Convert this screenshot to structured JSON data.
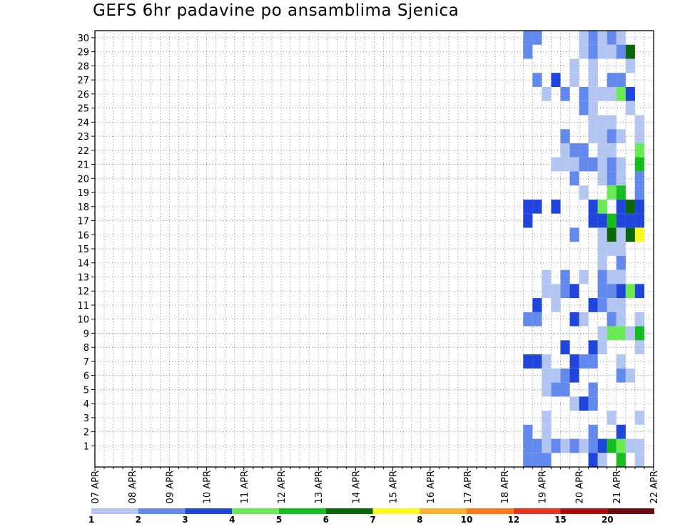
{
  "chart_data": {
    "type": "heatmap",
    "title": "GEFS 6hr padavine po ansamblima Sjenica",
    "xlabel": "",
    "ylabel": "",
    "x_tick_labels": [
      "07 APR",
      "08 APR",
      "09 APR",
      "10 APR",
      "11 APR",
      "12 APR",
      "13 APR",
      "14 APR",
      "15 APR",
      "16 APR",
      "17 APR",
      "18 APR",
      "19 APR",
      "20 APR",
      "21 APR",
      "22 APR"
    ],
    "x_ticks_step_per_label": 4,
    "x_steps_6h": 60,
    "y_tick_labels": [
      "1",
      "2",
      "3",
      "4",
      "5",
      "6",
      "7",
      "8",
      "9",
      "10",
      "11",
      "12",
      "13",
      "14",
      "15",
      "16",
      "17",
      "18",
      "19",
      "20",
      "21",
      "22",
      "23",
      "24",
      "25",
      "26",
      "27",
      "28",
      "29",
      "30"
    ],
    "members": 31,
    "legend_labels": [
      "1",
      "2",
      "3",
      "4",
      "5",
      "6",
      "7",
      "8",
      "10",
      "12",
      "15",
      "20"
    ],
    "levels": [
      1,
      2,
      3,
      4,
      5,
      6,
      7,
      8,
      10,
      12,
      15,
      20
    ],
    "colors": [
      "#b3c6f2",
      "#6389ee",
      "#1f45dc",
      "#6aeb55",
      "#16bd1f",
      "#086708",
      "#fefa1f",
      "#fbb032",
      "#f9781a",
      "#e5331f",
      "#ae0c0c",
      "#6e0b0b"
    ],
    "cells": [
      [
        14,
        30,
        2
      ],
      [
        14,
        29,
        2
      ],
      [
        14,
        18,
        3
      ],
      [
        14,
        17,
        3
      ],
      [
        14,
        10,
        2
      ],
      [
        14,
        7,
        3
      ],
      [
        14,
        2,
        2
      ],
      [
        14,
        1,
        2
      ],
      [
        14,
        0,
        2
      ],
      [
        13,
        30,
        2
      ],
      [
        13,
        27,
        2
      ],
      [
        13,
        18,
        3
      ],
      [
        13,
        11,
        3
      ],
      [
        13,
        10,
        2
      ],
      [
        13,
        7,
        3
      ],
      [
        13,
        1,
        2
      ],
      [
        13,
        0,
        2
      ],
      [
        12,
        26,
        1
      ],
      [
        12,
        13,
        1
      ],
      [
        12,
        12,
        1
      ],
      [
        12,
        7,
        1
      ],
      [
        12,
        6,
        1
      ],
      [
        12,
        5,
        1
      ],
      [
        12,
        3,
        1
      ],
      [
        12,
        2,
        1
      ],
      [
        12,
        1,
        1
      ],
      [
        12,
        0,
        2
      ],
      [
        11,
        27,
        3
      ],
      [
        11,
        21,
        1
      ],
      [
        11,
        18,
        3
      ],
      [
        11,
        12,
        1
      ],
      [
        11,
        11,
        1
      ],
      [
        11,
        6,
        1
      ],
      [
        11,
        5,
        2
      ],
      [
        11,
        1,
        2
      ],
      [
        10,
        26,
        2
      ],
      [
        10,
        23,
        2
      ],
      [
        10,
        22,
        1
      ],
      [
        10,
        21,
        1
      ],
      [
        10,
        13,
        2
      ],
      [
        10,
        12,
        2
      ],
      [
        10,
        8,
        3
      ],
      [
        10,
        6,
        2
      ],
      [
        10,
        5,
        2
      ],
      [
        10,
        1,
        1
      ],
      [
        9,
        28,
        1
      ],
      [
        9,
        27,
        1
      ],
      [
        9,
        22,
        2
      ],
      [
        9,
        21,
        1
      ],
      [
        9,
        20,
        2
      ],
      [
        9,
        16,
        2
      ],
      [
        9,
        12,
        3
      ],
      [
        9,
        10,
        3
      ],
      [
        9,
        7,
        3
      ],
      [
        9,
        6,
        3
      ],
      [
        9,
        4,
        1
      ],
      [
        9,
        1,
        2
      ],
      [
        8,
        30,
        1
      ],
      [
        8,
        29,
        1
      ],
      [
        8,
        26,
        2
      ],
      [
        8,
        25,
        2
      ],
      [
        8,
        22,
        2
      ],
      [
        8,
        21,
        2
      ],
      [
        8,
        19,
        1
      ],
      [
        8,
        13,
        1
      ],
      [
        8,
        10,
        1
      ],
      [
        8,
        7,
        2
      ],
      [
        8,
        4,
        3
      ],
      [
        8,
        1,
        1
      ],
      [
        7,
        30,
        2
      ],
      [
        7,
        29,
        2
      ],
      [
        7,
        28,
        1
      ],
      [
        7,
        27,
        1
      ],
      [
        7,
        26,
        1
      ],
      [
        7,
        25,
        1
      ],
      [
        7,
        24,
        1
      ],
      [
        7,
        23,
        1
      ],
      [
        7,
        21,
        2
      ],
      [
        7,
        18,
        3
      ],
      [
        7,
        17,
        3
      ],
      [
        7,
        11,
        3
      ],
      [
        7,
        8,
        3
      ],
      [
        7,
        7,
        2
      ],
      [
        7,
        5,
        2
      ],
      [
        7,
        4,
        2
      ],
      [
        7,
        2,
        2
      ],
      [
        7,
        1,
        2
      ],
      [
        7,
        0,
        3
      ],
      [
        6,
        30,
        1
      ],
      [
        6,
        29,
        1
      ],
      [
        6,
        26,
        1
      ],
      [
        6,
        24,
        1
      ],
      [
        6,
        23,
        1
      ],
      [
        6,
        22,
        1
      ],
      [
        6,
        21,
        1
      ],
      [
        6,
        20,
        1
      ],
      [
        6,
        18,
        4
      ],
      [
        6,
        17,
        3
      ],
      [
        6,
        16,
        1
      ],
      [
        6,
        15,
        1
      ],
      [
        6,
        14,
        1
      ],
      [
        6,
        13,
        2
      ],
      [
        6,
        12,
        2
      ],
      [
        6,
        11,
        2
      ],
      [
        6,
        9,
        1
      ],
      [
        6,
        8,
        1
      ],
      [
        6,
        1,
        3
      ],
      [
        6,
        0,
        1
      ],
      [
        5,
        30,
        2
      ],
      [
        5,
        29,
        1
      ],
      [
        5,
        27,
        2
      ],
      [
        5,
        26,
        1
      ],
      [
        5,
        24,
        1
      ],
      [
        5,
        23,
        2
      ],
      [
        5,
        22,
        1
      ],
      [
        5,
        21,
        2
      ],
      [
        5,
        20,
        2
      ],
      [
        5,
        19,
        4
      ],
      [
        5,
        17,
        5
      ],
      [
        5,
        16,
        6
      ],
      [
        5,
        15,
        1
      ],
      [
        5,
        13,
        1
      ],
      [
        5,
        12,
        2
      ],
      [
        5,
        11,
        1
      ],
      [
        5,
        10,
        2
      ],
      [
        5,
        9,
        4
      ],
      [
        5,
        3,
        1
      ],
      [
        5,
        1,
        5
      ],
      [
        4,
        30,
        1
      ],
      [
        4,
        29,
        2
      ],
      [
        4,
        27,
        2
      ],
      [
        4,
        26,
        4
      ],
      [
        4,
        23,
        1
      ],
      [
        4,
        21,
        1
      ],
      [
        4,
        20,
        1
      ],
      [
        4,
        19,
        5
      ],
      [
        4,
        18,
        3
      ],
      [
        4,
        17,
        3
      ],
      [
        4,
        16,
        1
      ],
      [
        4,
        15,
        1
      ],
      [
        4,
        14,
        2
      ],
      [
        4,
        13,
        1
      ],
      [
        4,
        12,
        3
      ],
      [
        4,
        11,
        1
      ],
      [
        4,
        10,
        1
      ],
      [
        4,
        9,
        4
      ],
      [
        4,
        7,
        1
      ],
      [
        4,
        6,
        2
      ],
      [
        4,
        2,
        3
      ],
      [
        4,
        1,
        4
      ],
      [
        4,
        0,
        5
      ],
      [
        3,
        29,
        6
      ],
      [
        3,
        28,
        1
      ],
      [
        3,
        26,
        3
      ],
      [
        3,
        25,
        1
      ],
      [
        3,
        18,
        6
      ],
      [
        3,
        17,
        3
      ],
      [
        3,
        16,
        6
      ],
      [
        3,
        12,
        4
      ],
      [
        3,
        9,
        1
      ],
      [
        3,
        6,
        1
      ],
      [
        3,
        1,
        1
      ],
      [
        2,
        24,
        1
      ],
      [
        2,
        23,
        1
      ],
      [
        2,
        22,
        4
      ],
      [
        2,
        21,
        5
      ],
      [
        2,
        20,
        2
      ],
      [
        2,
        19,
        2
      ],
      [
        2,
        18,
        3
      ],
      [
        2,
        17,
        3
      ],
      [
        2,
        16,
        7
      ],
      [
        2,
        12,
        3
      ],
      [
        2,
        10,
        1
      ],
      [
        2,
        9,
        5
      ],
      [
        2,
        8,
        1
      ],
      [
        2,
        3,
        1
      ],
      [
        2,
        1,
        1
      ],
      [
        2,
        0,
        1
      ]
    ]
  }
}
